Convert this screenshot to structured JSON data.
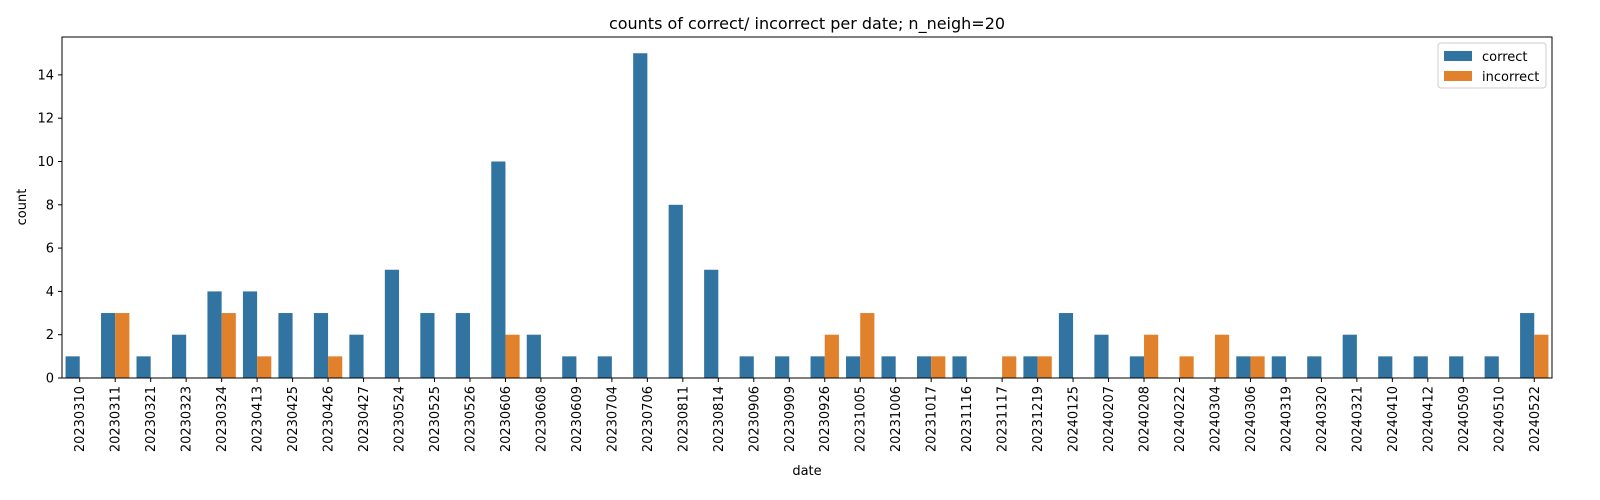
{
  "chart_data": {
    "type": "bar",
    "title": "counts of correct/ incorrect per date; n_neigh=20",
    "xlabel": "date",
    "ylabel": "count",
    "ylim": [
      0,
      15.75
    ],
    "yticks": [
      0,
      2,
      4,
      6,
      8,
      10,
      12,
      14
    ],
    "legend_position": "top-right",
    "categories": [
      "20230310",
      "20230311",
      "20230321",
      "20230323",
      "20230324",
      "20230413",
      "20230425",
      "20230426",
      "20230427",
      "20230524",
      "20230525",
      "20230526",
      "20230606",
      "20230608",
      "20230609",
      "20230704",
      "20230706",
      "20230811",
      "20230814",
      "20230906",
      "20230909",
      "20230926",
      "20231005",
      "20231006",
      "20231017",
      "20231116",
      "20231117",
      "20231219",
      "20240125",
      "20240207",
      "20240208",
      "20240222",
      "20240304",
      "20240306",
      "20240319",
      "20240320",
      "20240321",
      "20240410",
      "20240412",
      "20240509",
      "20240510",
      "20240522"
    ],
    "series": [
      {
        "name": "correct",
        "color": "#3274a1",
        "values": [
          1,
          3,
          1,
          2,
          4,
          4,
          3,
          3,
          2,
          5,
          3,
          3,
          10,
          2,
          1,
          1,
          15,
          8,
          5,
          1,
          1,
          1,
          1,
          1,
          1,
          1,
          0,
          1,
          3,
          2,
          1,
          0,
          0,
          1,
          1,
          1,
          2,
          1,
          1,
          1,
          1,
          3
        ]
      },
      {
        "name": "incorrect",
        "color": "#e1812c",
        "values": [
          0,
          3,
          0,
          0,
          3,
          1,
          0,
          1,
          0,
          0,
          0,
          0,
          2,
          0,
          0,
          0,
          0,
          0,
          0,
          0,
          0,
          2,
          3,
          0,
          1,
          0,
          1,
          1,
          0,
          0,
          2,
          1,
          2,
          1,
          0,
          0,
          0,
          0,
          0,
          0,
          0,
          2
        ]
      }
    ]
  }
}
